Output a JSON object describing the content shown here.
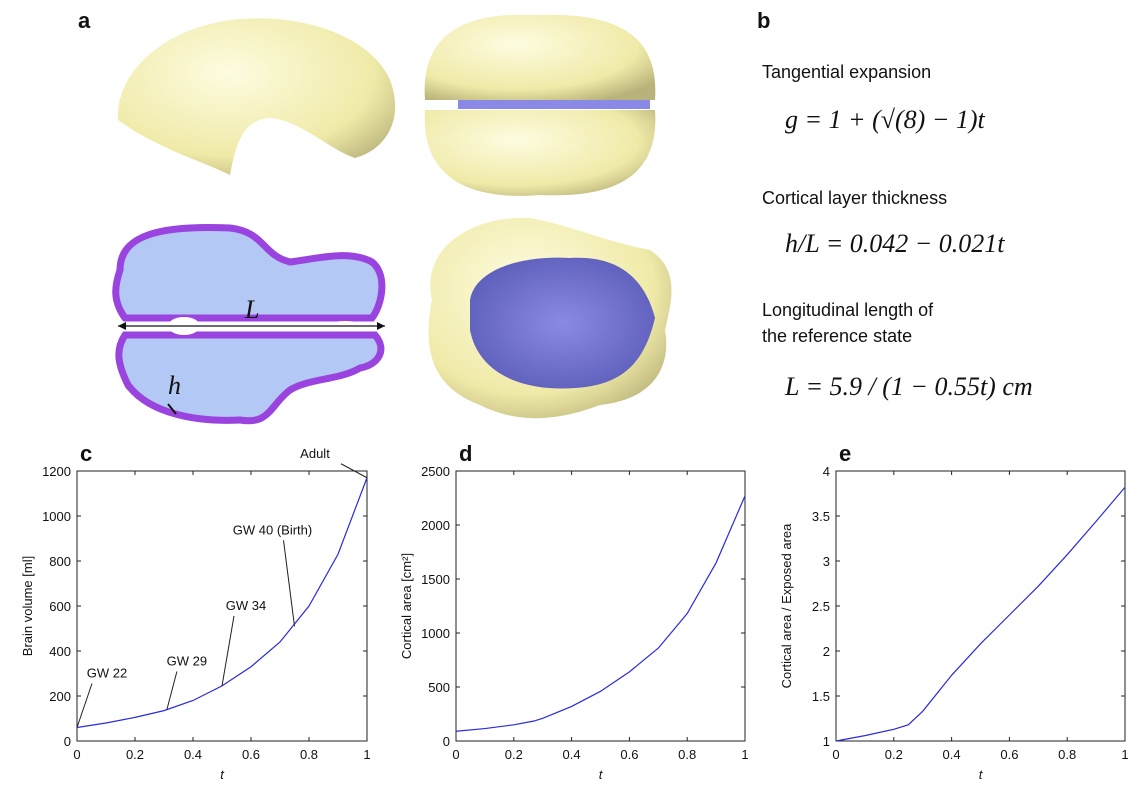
{
  "panels": {
    "a": {
      "label": "a",
      "length_label": "L",
      "thickness_label": "h"
    },
    "b": {
      "label": "b",
      "items": [
        {
          "heading": "Tangential expansion",
          "formula": "g = 1 + (√(8) − 1)t"
        },
        {
          "heading": "Cortical layer thickness",
          "formula": "h/L = 0.042 − 0.021t"
        },
        {
          "heading": [
            "Longitudinal length of",
            "the reference state"
          ],
          "formula": "L = 5.9 / (1 − 0.55t) cm"
        }
      ]
    }
  },
  "chart_data": [
    {
      "type": "line",
      "panel": "c",
      "x_label": "t",
      "y_label": "Brain volume [ml]",
      "x": [
        0,
        0.1,
        0.2,
        0.3,
        0.4,
        0.5,
        0.6,
        0.7,
        0.8,
        0.9,
        1
      ],
      "series": [
        {
          "color": "#2a2adf",
          "values": [
            60,
            80,
            105,
            135,
            180,
            245,
            330,
            440,
            600,
            830,
            1170
          ]
        }
      ],
      "xlim": [
        0,
        1
      ],
      "xticks": [
        0,
        0.2,
        0.4,
        0.6,
        0.8,
        1
      ],
      "ylim": [
        0,
        1200
      ],
      "yticks": [
        0,
        200,
        400,
        600,
        800,
        1000,
        1200
      ],
      "annotations": [
        {
          "text": "GW 22",
          "x": 0,
          "y": 60
        },
        {
          "text": "GW 29",
          "x": 0.31,
          "y": 140
        },
        {
          "text": "GW 34",
          "x": 0.5,
          "y": 245
        },
        {
          "text": "GW 40 (Birth)",
          "x": 0.75,
          "y": 510
        },
        {
          "text": "Adult",
          "x": 1,
          "y": 1170
        }
      ]
    },
    {
      "type": "line",
      "panel": "d",
      "x_label": "t",
      "y_label": "Cortical area [cm²]",
      "x": [
        0,
        0.1,
        0.2,
        0.27,
        0.3,
        0.4,
        0.5,
        0.6,
        0.7,
        0.8,
        0.9,
        1
      ],
      "series": [
        {
          "color": "#2a2adf",
          "values": [
            90,
            115,
            150,
            185,
            210,
            320,
            460,
            640,
            860,
            1180,
            1650,
            2270
          ]
        }
      ],
      "xlim": [
        0,
        1
      ],
      "xticks": [
        0,
        0.2,
        0.4,
        0.6,
        0.8,
        1
      ],
      "ylim": [
        0,
        2500
      ],
      "yticks": [
        0,
        500,
        1000,
        1500,
        2000,
        2500
      ]
    },
    {
      "type": "line",
      "panel": "e",
      "x_label": "t",
      "y_label": "Cortical area / Exposed area",
      "x": [
        0,
        0.1,
        0.2,
        0.25,
        0.3,
        0.4,
        0.5,
        0.6,
        0.7,
        0.8,
        0.9,
        1
      ],
      "series": [
        {
          "color": "#2a2adf",
          "values": [
            1.0,
            1.06,
            1.13,
            1.18,
            1.33,
            1.73,
            2.08,
            2.4,
            2.72,
            3.07,
            3.44,
            3.82
          ]
        }
      ],
      "xlim": [
        0,
        1
      ],
      "xticks": [
        0,
        0.2,
        0.4,
        0.6,
        0.8,
        1
      ],
      "ylim": [
        1,
        4
      ],
      "yticks": [
        1,
        1.5,
        2,
        2.5,
        3,
        3.5,
        4
      ]
    }
  ]
}
